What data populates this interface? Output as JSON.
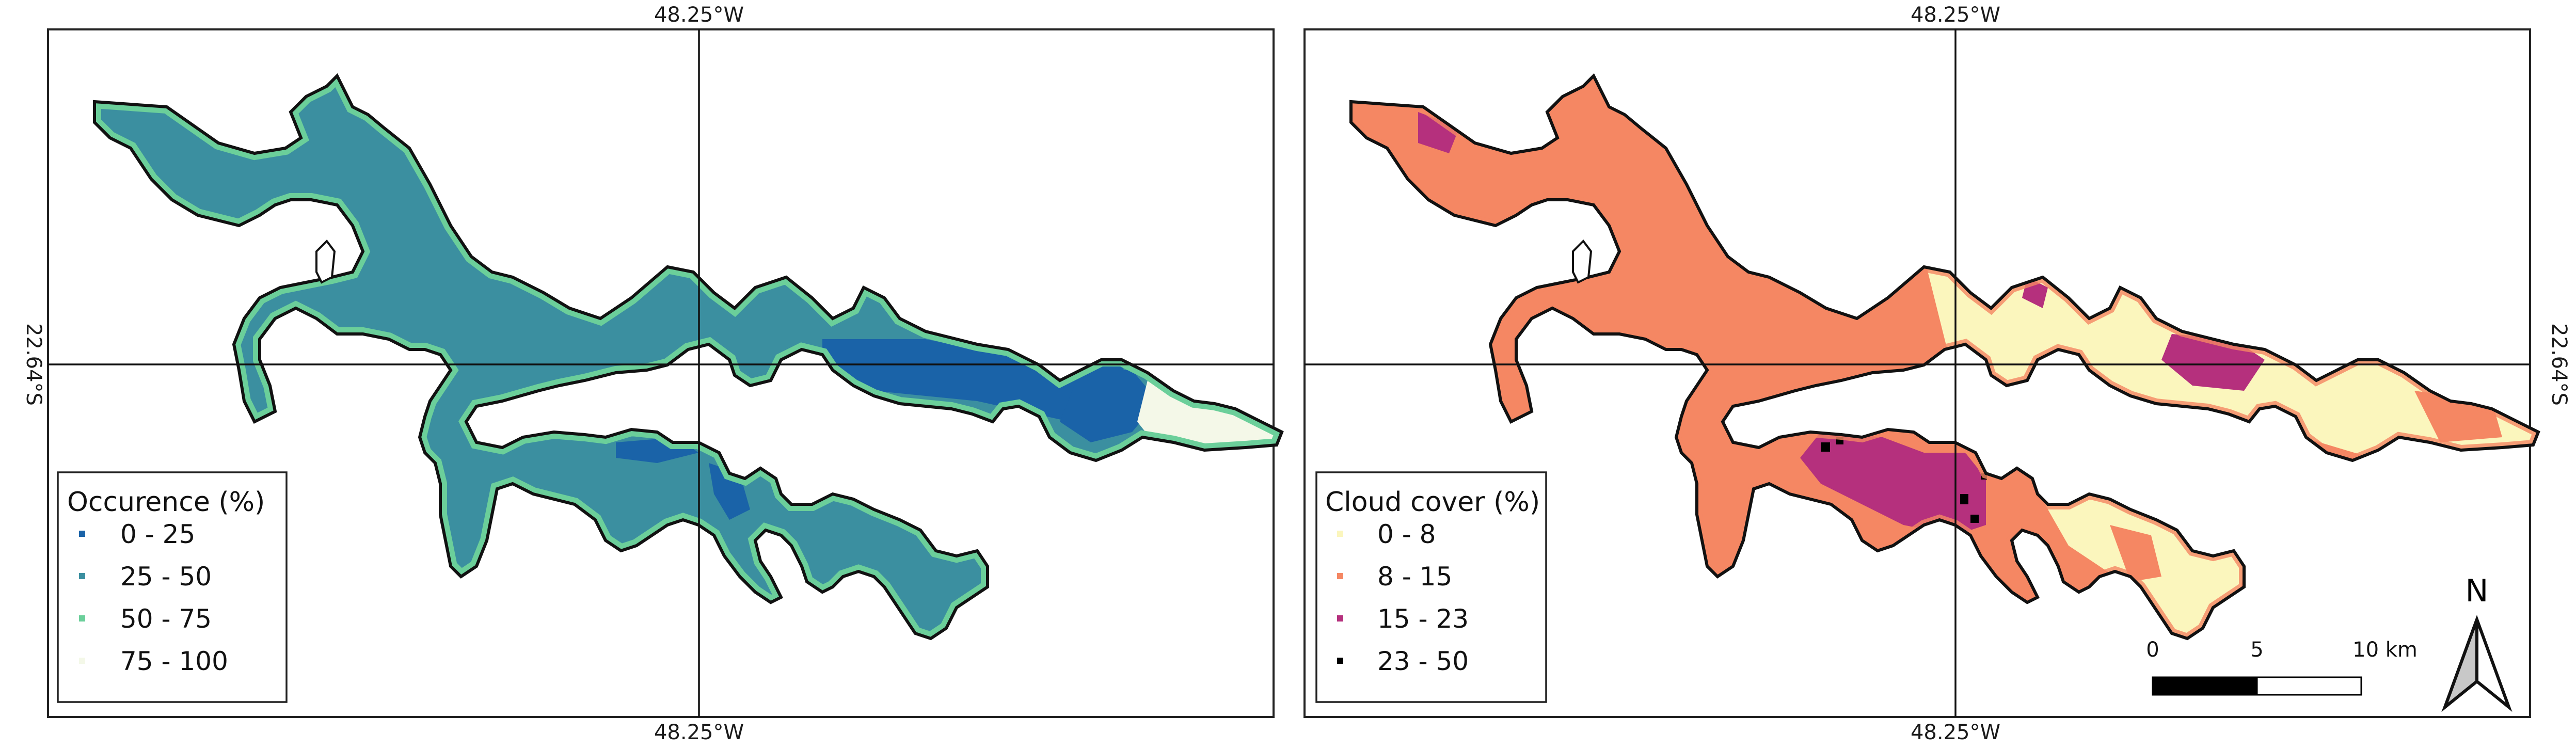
{
  "maps": [
    {
      "id": "occurrence",
      "top_longitude": "48.25°W",
      "bottom_longitude": "48.25°W",
      "latitude_label": "22.64°S",
      "legend": {
        "title": "Occurence (%)",
        "items": [
          {
            "label": "0 - 25",
            "color": "#1a63a8"
          },
          {
            "label": "25 - 50",
            "color": "#3b8fa0"
          },
          {
            "label": "50 - 75",
            "color": "#6bcf9a"
          },
          {
            "label": "75 - 100",
            "color": "#f4f8e8"
          }
        ]
      }
    },
    {
      "id": "cloud-cover",
      "top_longitude": "48.25°W",
      "bottom_longitude": "48.25°W",
      "latitude_label": "22.64°S",
      "legend": {
        "title": "Cloud cover (%)",
        "items": [
          {
            "label": "0 - 8",
            "color": "#fbf6bd"
          },
          {
            "label": "8 - 15",
            "color": "#f58763"
          },
          {
            "label": "15 - 23",
            "color": "#b5307d"
          },
          {
            "label": "23 - 50",
            "color": "#000000"
          }
        ]
      }
    }
  ],
  "scale_bar": {
    "labels": [
      "0",
      "5",
      "10 km"
    ]
  },
  "north_arrow": {
    "label": "N"
  }
}
